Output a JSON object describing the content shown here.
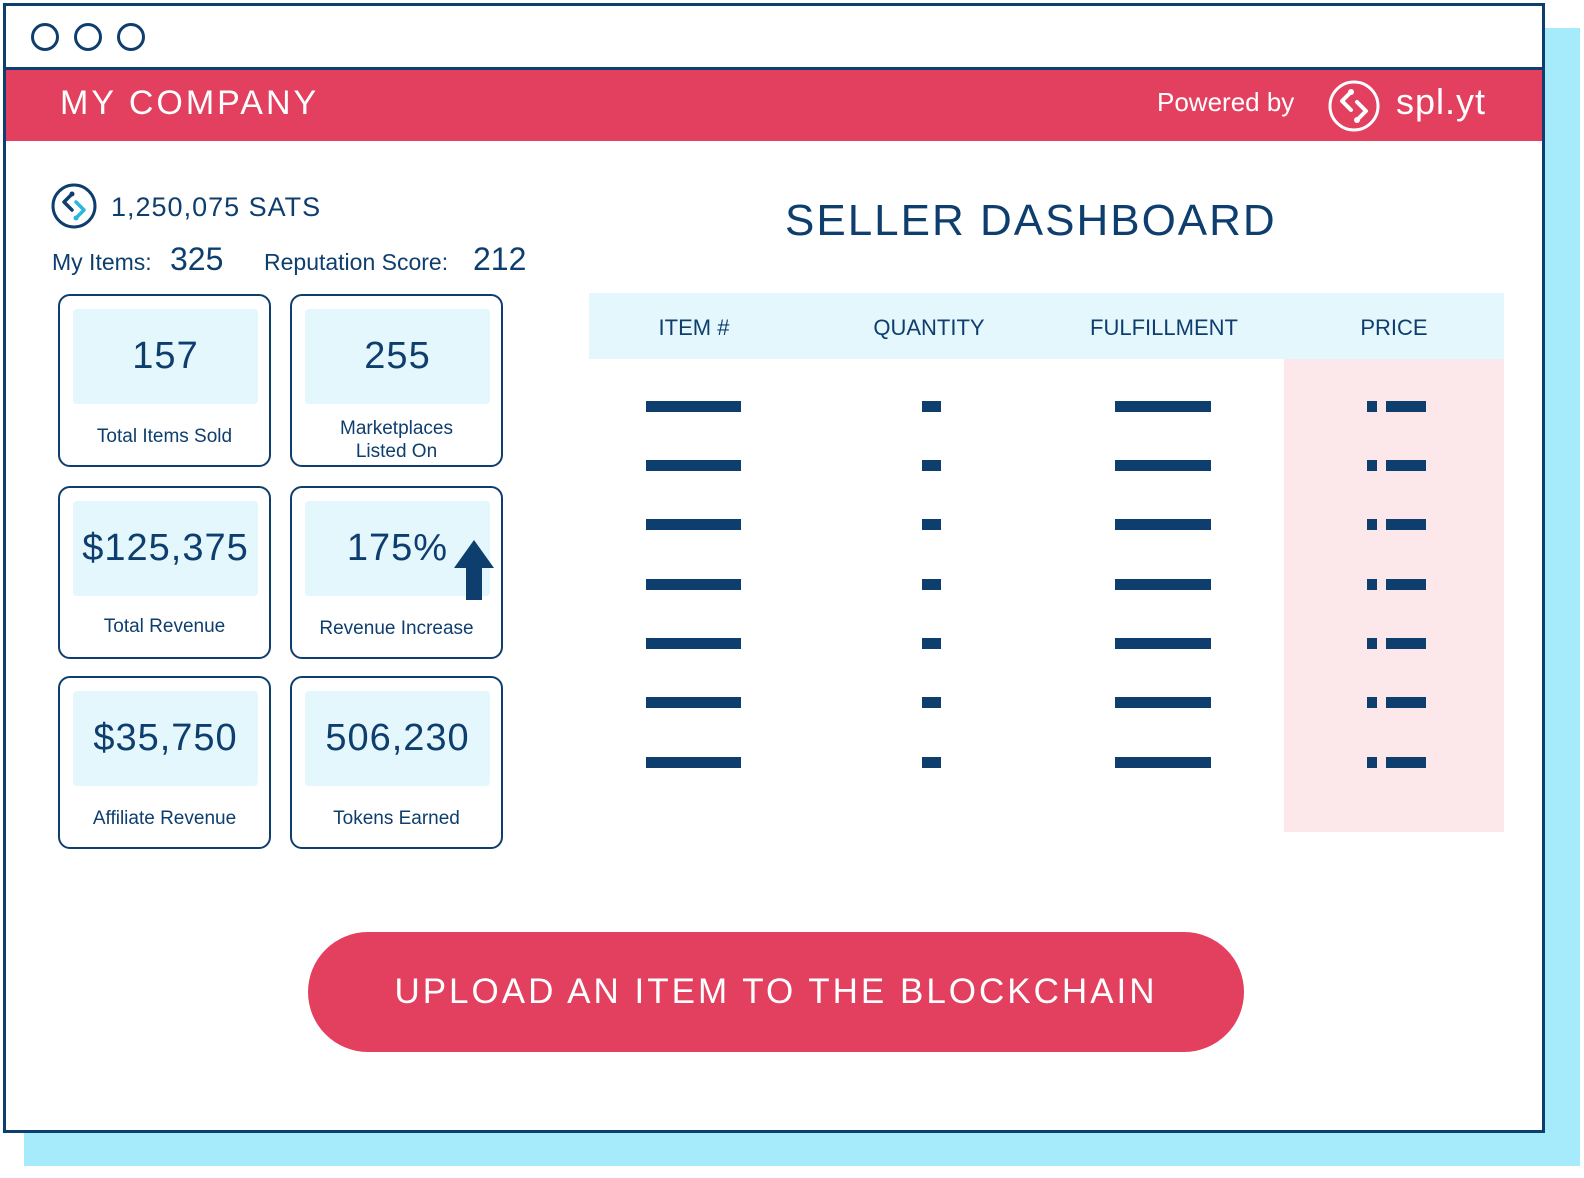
{
  "header": {
    "company": "MY COMPANY",
    "powered_by": "Powered by",
    "brand_name": "spl.yt"
  },
  "wallet": {
    "balance": "1,250,075 SATS",
    "my_items_label": "My Items:",
    "my_items_value": "325",
    "reputation_label": "Reputation Score:",
    "reputation_value": "212"
  },
  "cards": [
    {
      "value": "157",
      "label": "Total Items Sold"
    },
    {
      "value": "255",
      "label": "Marketplaces Listed On"
    },
    {
      "value": "$125,375",
      "label": "Total Revenue"
    },
    {
      "value": "175%",
      "label": "Revenue Increase"
    },
    {
      "value": "$35,750",
      "label": "Affiliate Revenue"
    },
    {
      "value": "506,230",
      "label": "Tokens Earned"
    }
  ],
  "dashboard": {
    "title": "SELLER DASHBOARD",
    "columns": [
      "ITEM #",
      "QUANTITY",
      "FULFILLMENT",
      "PRICE"
    ]
  },
  "upload_button": "UPLOAD AN ITEM TO THE BLOCKCHAIN",
  "colors": {
    "accent": "#e3405f",
    "navy": "#0e3e6e",
    "light_blue": "#e4f7fd",
    "light_pink": "#fce8ea"
  }
}
